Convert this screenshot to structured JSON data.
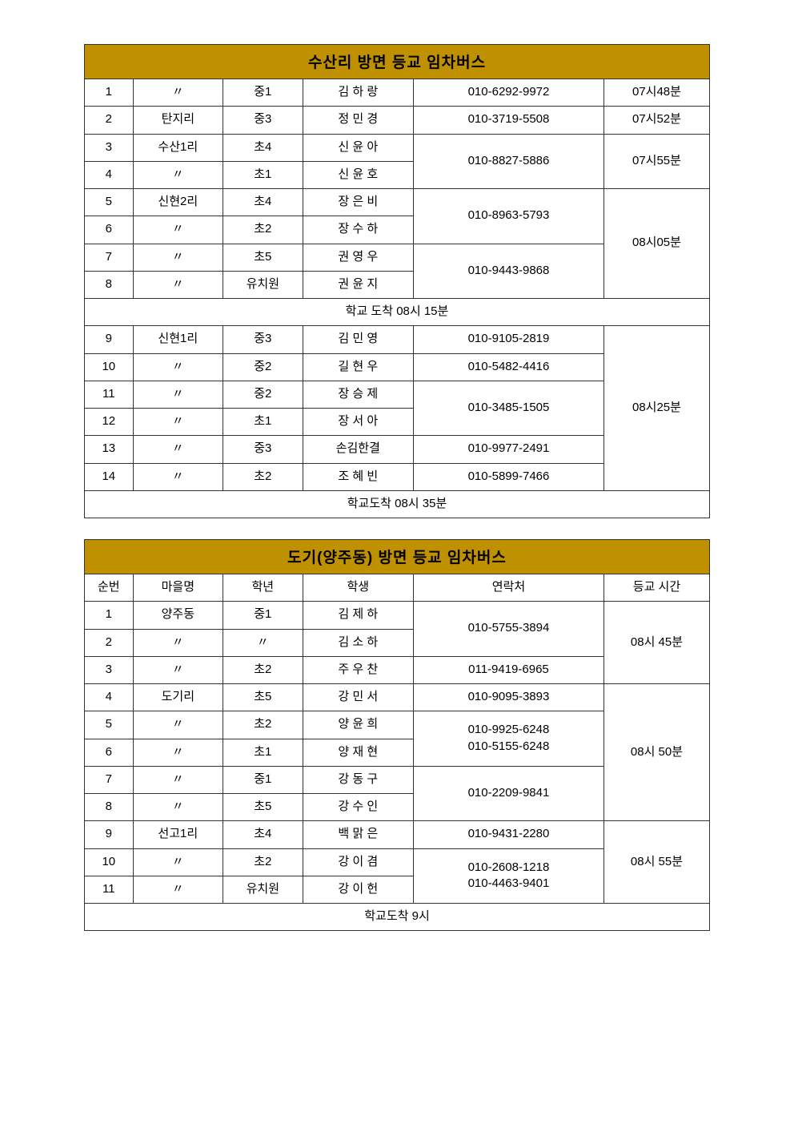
{
  "colors": {
    "header_bg": "#bf9000",
    "border": "#333333",
    "text": "#000000",
    "page_bg": "#ffffff"
  },
  "table1": {
    "title": "수산리 방면 등교 임차버스",
    "arrival1": "학교 도착 08시 15분",
    "arrival2": "학교도착 08시 35분",
    "group1_time": "07시48분",
    "group2_time": "07시52분",
    "group3_time": "07시55분",
    "group4_time": "08시05분",
    "group5_time": "08시25분",
    "rows": {
      "r1": {
        "seq": "1",
        "vill": "〃",
        "grade": "중1",
        "name": "김 하 랑",
        "phone": "010-6292-9972"
      },
      "r2": {
        "seq": "2",
        "vill": "탄지리",
        "grade": "중3",
        "name": "정 민 경",
        "phone": "010-3719-5508"
      },
      "r3": {
        "seq": "3",
        "vill": "수산1리",
        "grade": "초4",
        "name": "신 윤 아"
      },
      "r4": {
        "seq": "4",
        "vill": "〃",
        "grade": "초1",
        "name": "신 윤 호"
      },
      "r34phone": "010-8827-5886",
      "r5": {
        "seq": "5",
        "vill": "신현2리",
        "grade": "초4",
        "name": "장 은 비"
      },
      "r6": {
        "seq": "6",
        "vill": "〃",
        "grade": "초2",
        "name": "장 수 하"
      },
      "r56phone": "010-8963-5793",
      "r7": {
        "seq": "7",
        "vill": "〃",
        "grade": "초5",
        "name": "권 영 우"
      },
      "r8": {
        "seq": "8",
        "vill": "〃",
        "grade": "유치원",
        "name": "권 윤 지"
      },
      "r78phone": "010-9443-9868",
      "r9": {
        "seq": "9",
        "vill": "신현1리",
        "grade": "중3",
        "name": "김 민 영",
        "phone": "010-9105-2819"
      },
      "r10": {
        "seq": "10",
        "vill": "〃",
        "grade": "중2",
        "name": "길 현 우",
        "phone": "010-5482-4416"
      },
      "r11": {
        "seq": "11",
        "vill": "〃",
        "grade": "중2",
        "name": "장 승 제"
      },
      "r12": {
        "seq": "12",
        "vill": "〃",
        "grade": "초1",
        "name": "장 서 아"
      },
      "r1112phone": "010-3485-1505",
      "r13": {
        "seq": "13",
        "vill": "〃",
        "grade": "중3",
        "name": "손김한결",
        "phone": "010-9977-2491"
      },
      "r14": {
        "seq": "14",
        "vill": "〃",
        "grade": "초2",
        "name": "조 혜 빈",
        "phone": "010-5899-7466"
      }
    }
  },
  "table2": {
    "title": "도기(양주동) 방면 등교 임차버스",
    "headers": {
      "seq": "순번",
      "vill": "마을명",
      "grade": "학년",
      "name": "학생",
      "phone": "연락처",
      "time": "등교 시간"
    },
    "arrival": "학교도착 9시",
    "group1_time": "08시 45분",
    "group2_time": "08시 50분",
    "group3_time": "08시 55분",
    "rows": {
      "r1": {
        "seq": "1",
        "vill": "양주동",
        "grade": "중1",
        "name": "김 제 하"
      },
      "r2": {
        "seq": "2",
        "vill": "〃",
        "grade": "〃",
        "name": "김 소 하"
      },
      "r12phone": "010-5755-3894",
      "r3": {
        "seq": "3",
        "vill": "〃",
        "grade": "초2",
        "name": "주 우 찬",
        "phone": "011-9419-6965"
      },
      "r4": {
        "seq": "4",
        "vill": "도기리",
        "grade": "초5",
        "name": "강 민 서",
        "phone": "010-9095-3893"
      },
      "r5": {
        "seq": "5",
        "vill": "〃",
        "grade": "초2",
        "name": "양 윤 희"
      },
      "r6": {
        "seq": "6",
        "vill": "〃",
        "grade": "초1",
        "name": "양 재 현"
      },
      "r56phone1": "010-9925-6248",
      "r56phone2": "010-5155-6248",
      "r7": {
        "seq": "7",
        "vill": "〃",
        "grade": "중1",
        "name": "강 동 구"
      },
      "r8": {
        "seq": "8",
        "vill": "〃",
        "grade": "초5",
        "name": "강 수 인"
      },
      "r78phone": "010-2209-9841",
      "r9": {
        "seq": "9",
        "vill": "선고1리",
        "grade": "초4",
        "name": "백 맑 은",
        "phone": "010-9431-2280"
      },
      "r10": {
        "seq": "10",
        "vill": "〃",
        "grade": "초2",
        "name": "강 이 겸"
      },
      "r11": {
        "seq": "11",
        "vill": "〃",
        "grade": "유치원",
        "name": "강 이 헌"
      },
      "r1011phone1": "010-2608-1218",
      "r1011phone2": "010-4463-9401"
    }
  }
}
